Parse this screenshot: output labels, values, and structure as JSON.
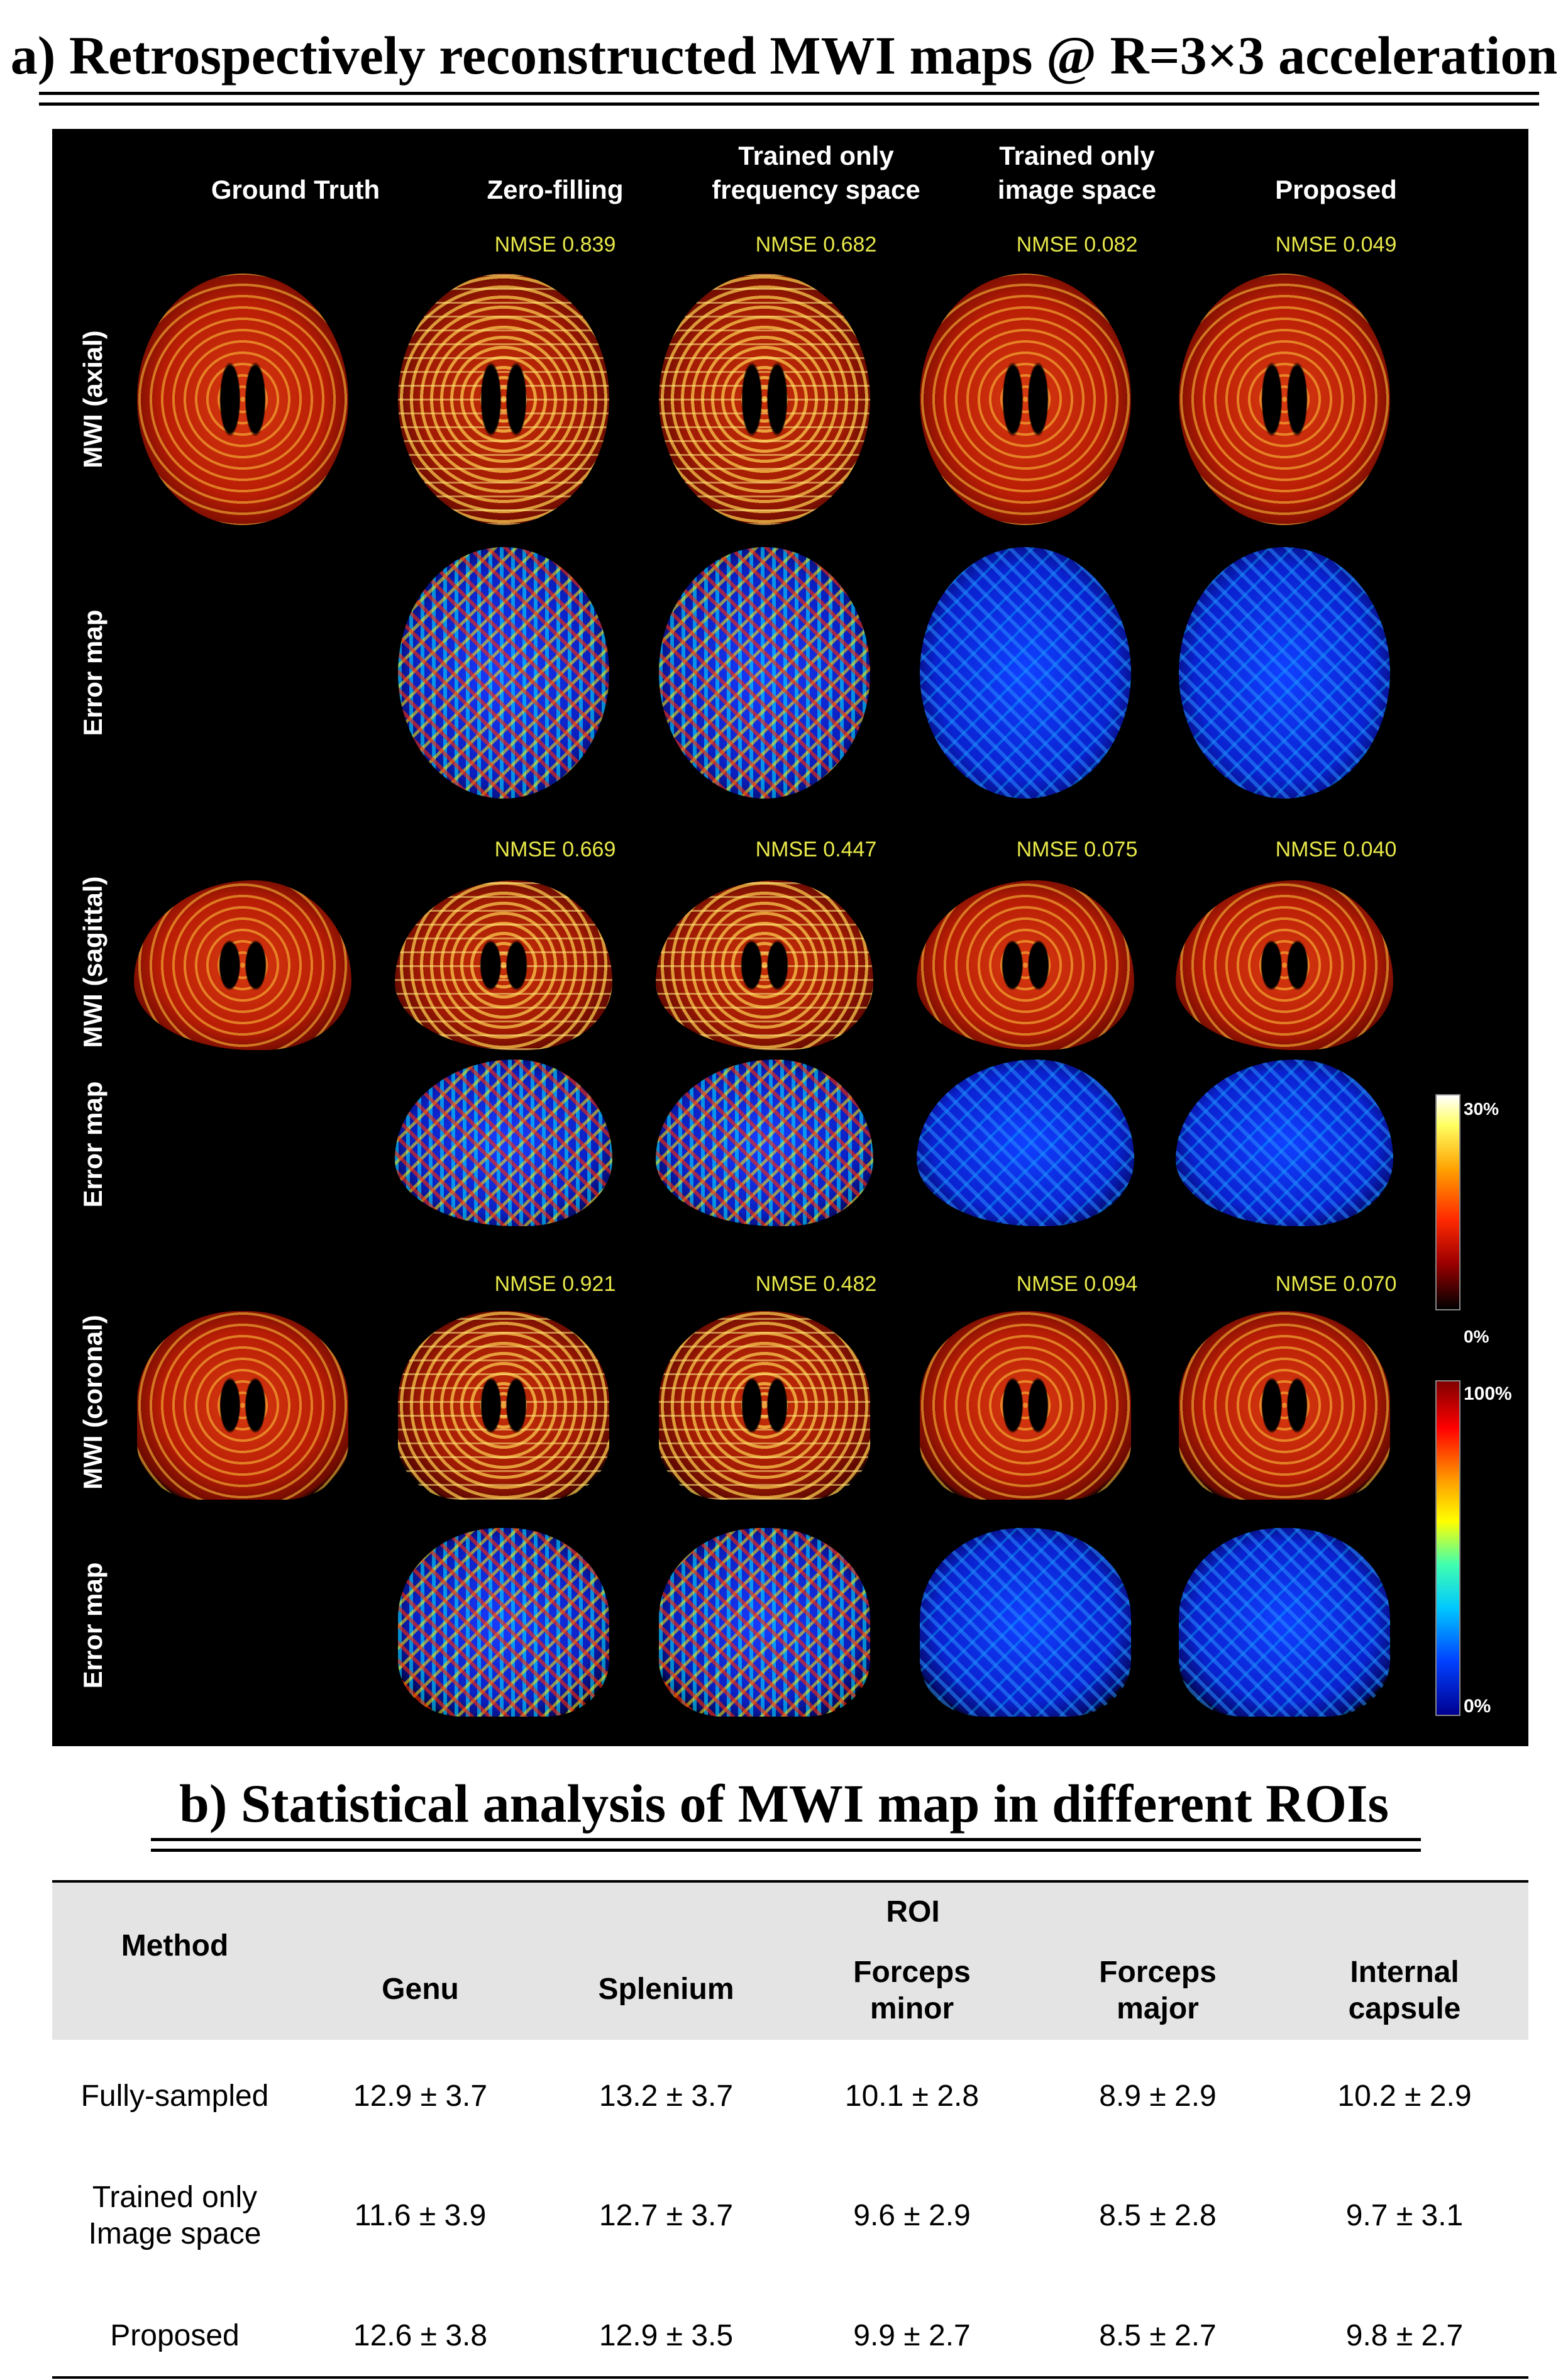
{
  "section_a": {
    "title": "a) Retrospectively reconstructed MWI maps @ R=3×3 acceleration"
  },
  "figure": {
    "columns": [
      "Ground Truth",
      "Zero-filling",
      "Trained only\nfrequency space",
      "Trained only\nimage space",
      "Proposed"
    ],
    "row_labels": [
      "MWI (axial)",
      "Error map",
      "MWI (sagittal)",
      "Error map",
      "MWI (coronal)",
      "Error map"
    ],
    "nmse": {
      "axial": [
        "NMSE 0.839",
        "NMSE 0.682",
        "NMSE 0.082",
        "NMSE 0.049"
      ],
      "sagittal": [
        "NMSE 0.669",
        "NMSE 0.447",
        "NMSE 0.075",
        "NMSE 0.040"
      ],
      "coronal": [
        "NMSE 0.921",
        "NMSE 0.482",
        "NMSE 0.094",
        "NMSE 0.070"
      ]
    },
    "colorbar_mwi": {
      "max": "30%",
      "min": "0%",
      "colormap": "hot"
    },
    "colorbar_error": {
      "max": "100%",
      "min": "0%",
      "colormap": "jet"
    }
  },
  "section_b": {
    "title": "b) Statistical analysis of MWI map in different ROIs"
  },
  "table": {
    "method_header": "Method",
    "group_header": "ROI",
    "columns": [
      "Genu",
      "Splenium",
      "Forceps\nminor",
      "Forceps\nmajor",
      "Internal\ncapsule"
    ],
    "rows": [
      {
        "method": "Fully-sampled",
        "values": [
          "12.9 ± 3.7",
          "13.2 ± 3.7",
          "10.1 ± 2.8",
          "8.9 ± 2.9",
          "10.2 ± 2.9"
        ]
      },
      {
        "method": "Trained only\nImage space",
        "values": [
          "11.6 ± 3.9",
          "12.7 ± 3.7",
          "9.6 ± 2.9",
          "8.5 ± 2.8",
          "9.7 ± 3.1"
        ]
      },
      {
        "method": "Proposed",
        "values": [
          "12.6 ± 3.8",
          "12.9 ± 3.5",
          "9.9 ± 2.7",
          "8.5 ± 2.7",
          "9.8 ± 2.7"
        ]
      }
    ]
  }
}
